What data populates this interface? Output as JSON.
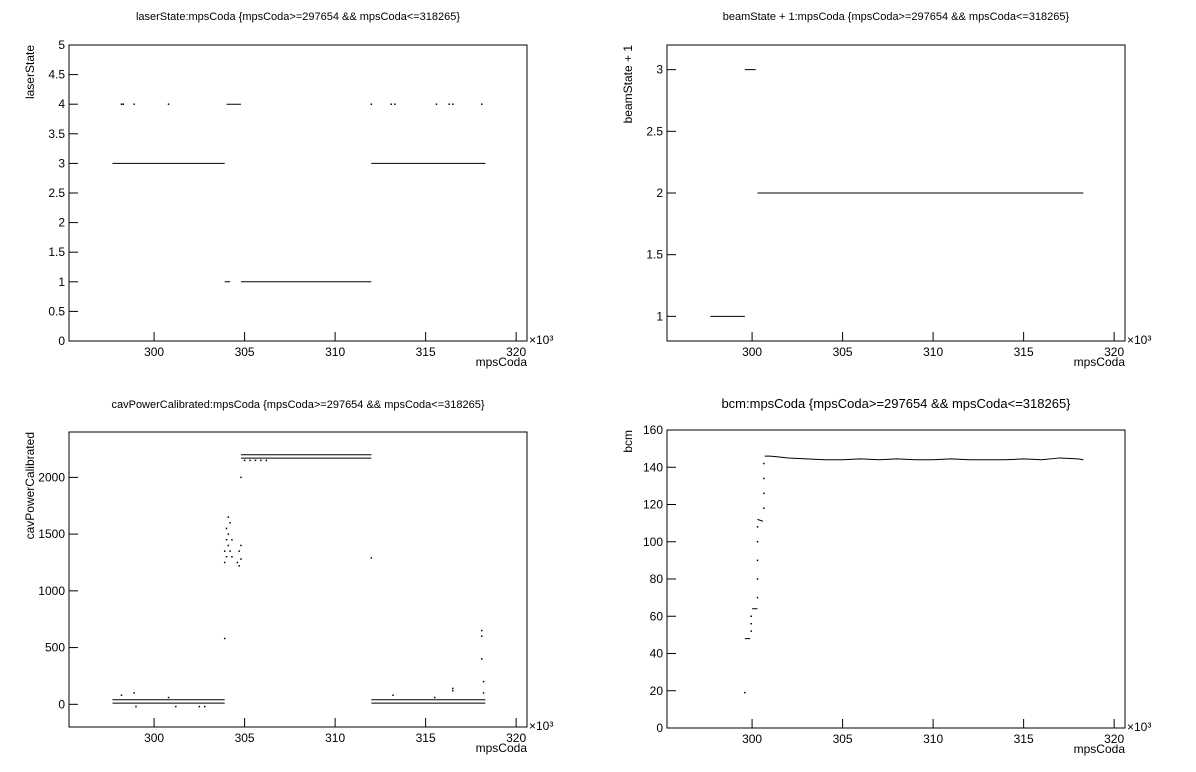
{
  "chart_data": [
    {
      "type": "scatter",
      "title": "laserState:mpsCoda {mpsCoda>=297654 && mpsCoda<=318265}",
      "xlabel": "mpsCoda",
      "ylabel": "laserState",
      "x_multiplier": "×10³",
      "xlim": [
        295.3,
        320.6
      ],
      "xticks": [
        300,
        305,
        310,
        315,
        320
      ],
      "ylim": [
        0,
        5
      ],
      "yticks": [
        0,
        0.5,
        1,
        1.5,
        2,
        2.5,
        3,
        3.5,
        4,
        4.5,
        5
      ],
      "series": [
        {
          "type": "line",
          "color": "#000000",
          "x": [
            297.7,
            303.9,
            null,
            304.8,
            312,
            null,
            312,
            318.3,
            null,
            304.0,
            304.8,
            null,
            303.9,
            304.2
          ],
          "y": [
            3,
            3,
            null,
            1,
            1,
            null,
            3,
            3,
            null,
            4,
            4,
            null,
            1,
            1
          ]
        },
        {
          "type": "scatter",
          "color": "#000000",
          "x": [
            298.2,
            298.3,
            298.9,
            300.8,
            312,
            313.1,
            313.3,
            315.6,
            316.3,
            316.5,
            318.1
          ],
          "y": [
            4,
            4,
            4,
            4,
            4,
            4,
            4,
            4,
            4,
            4,
            4
          ]
        }
      ]
    },
    {
      "type": "scatter",
      "title": "beamState + 1:mpsCoda {mpsCoda>=297654 && mpsCoda<=318265}",
      "xlabel": "mpsCoda",
      "ylabel": "beamState + 1",
      "x_multiplier": "×10³",
      "xlim": [
        295.3,
        320.6
      ],
      "xticks": [
        300,
        305,
        310,
        315,
        320
      ],
      "ylim": [
        0.8,
        3.2
      ],
      "yticks": [
        1,
        1.5,
        2,
        2.5,
        3
      ],
      "series": [
        {
          "type": "line",
          "color": "#000000",
          "x": [
            297.7,
            299.6,
            null,
            299.6,
            300.2,
            null,
            300.3,
            318.3
          ],
          "y": [
            1,
            1,
            null,
            3,
            3,
            null,
            2,
            2
          ]
        }
      ]
    },
    {
      "type": "scatter",
      "title": "cavPowerCalibrated:mpsCoda {mpsCoda>=297654 && mpsCoda<=318265}",
      "xlabel": "mpsCoda",
      "ylabel": "cavPowerCalibrated",
      "x_multiplier": "×10³",
      "xlim": [
        295.3,
        320.6
      ],
      "xticks": [
        300,
        305,
        310,
        315,
        320
      ],
      "ylim": [
        -200,
        2400
      ],
      "yticks": [
        0,
        500,
        1000,
        1500,
        2000
      ],
      "series": [
        {
          "type": "line",
          "color": "#000000",
          "x": [
            297.7,
            303.9,
            null,
            297.7,
            303.9,
            null,
            304.8,
            312,
            null,
            304.8,
            312,
            null,
            312,
            318.3,
            null,
            312,
            318.3
          ],
          "y": [
            40,
            40,
            null,
            10,
            10,
            null,
            2200,
            2200,
            null,
            2170,
            2170,
            null,
            40,
            40,
            null,
            10,
            10
          ]
        },
        {
          "type": "scatter",
          "color": "#000000",
          "x": [
            303.9,
            303.9,
            304.0,
            304.0,
            304.0,
            304.1,
            304.1,
            304.1,
            304.2,
            304.2,
            304.3,
            304.3,
            304.6,
            304.7,
            304.7,
            304.8,
            304.8,
            303.9,
            304.8,
            305.0,
            305.3,
            305.6,
            305.9,
            306.2,
            312,
            318.1,
            318.1,
            318.1,
            318.2,
            318.2,
            298.2,
            298.9,
            299.0,
            316.5,
            316.5,
            313.2,
            315.5,
            300.8,
            301.2,
            302.5,
            302.8
          ],
          "y": [
            1250,
            1350,
            1300,
            1450,
            1550,
            1400,
            1500,
            1650,
            1350,
            1600,
            1300,
            1450,
            1250,
            1220,
            1350,
            1280,
            1400,
            580,
            2000,
            2150,
            2150,
            2150,
            2150,
            2150,
            1290,
            650,
            600,
            400,
            200,
            100,
            80,
            100,
            -20,
            120,
            140,
            80,
            60,
            60,
            -20,
            -20,
            -20
          ]
        }
      ]
    },
    {
      "type": "scatter",
      "title": "bcm:mpsCoda {mpsCoda>=297654 && mpsCoda<=318265}",
      "xlabel": "mpsCoda",
      "ylabel": "bcm",
      "x_multiplier": "×10³",
      "xlim": [
        295.3,
        320.6
      ],
      "xticks": [
        300,
        305,
        310,
        315,
        320
      ],
      "ylim": [
        0,
        160
      ],
      "yticks": [
        0,
        20,
        40,
        60,
        80,
        100,
        120,
        140,
        160
      ],
      "series": [
        {
          "type": "line",
          "color": "#000000",
          "x": [
            299.6,
            299.9,
            null,
            300.0,
            300.3,
            null,
            300.3,
            300.6,
            null,
            300.7,
            301.0,
            301.5,
            302,
            303,
            304,
            305,
            306,
            307,
            308,
            309,
            310,
            311,
            312,
            313,
            314,
            315,
            316,
            317,
            318,
            318.3
          ],
          "y": [
            48,
            48,
            null,
            64,
            64,
            null,
            112,
            111,
            null,
            146,
            146,
            145.5,
            145,
            144.5,
            144,
            144,
            144.5,
            144,
            144.5,
            144,
            144,
            144.5,
            144,
            144,
            144,
            144.5,
            144,
            145,
            144.5,
            144
          ]
        },
        {
          "type": "scatter",
          "color": "#000000",
          "x": [
            299.6,
            299.95,
            299.95,
            299.95,
            300.3,
            300.3,
            300.3,
            300.3,
            300.3,
            300.65,
            300.65,
            300.65,
            300.65
          ],
          "y": [
            19,
            52,
            56,
            60,
            70,
            80,
            90,
            100,
            108,
            118,
            126,
            134,
            142
          ]
        }
      ]
    }
  ]
}
